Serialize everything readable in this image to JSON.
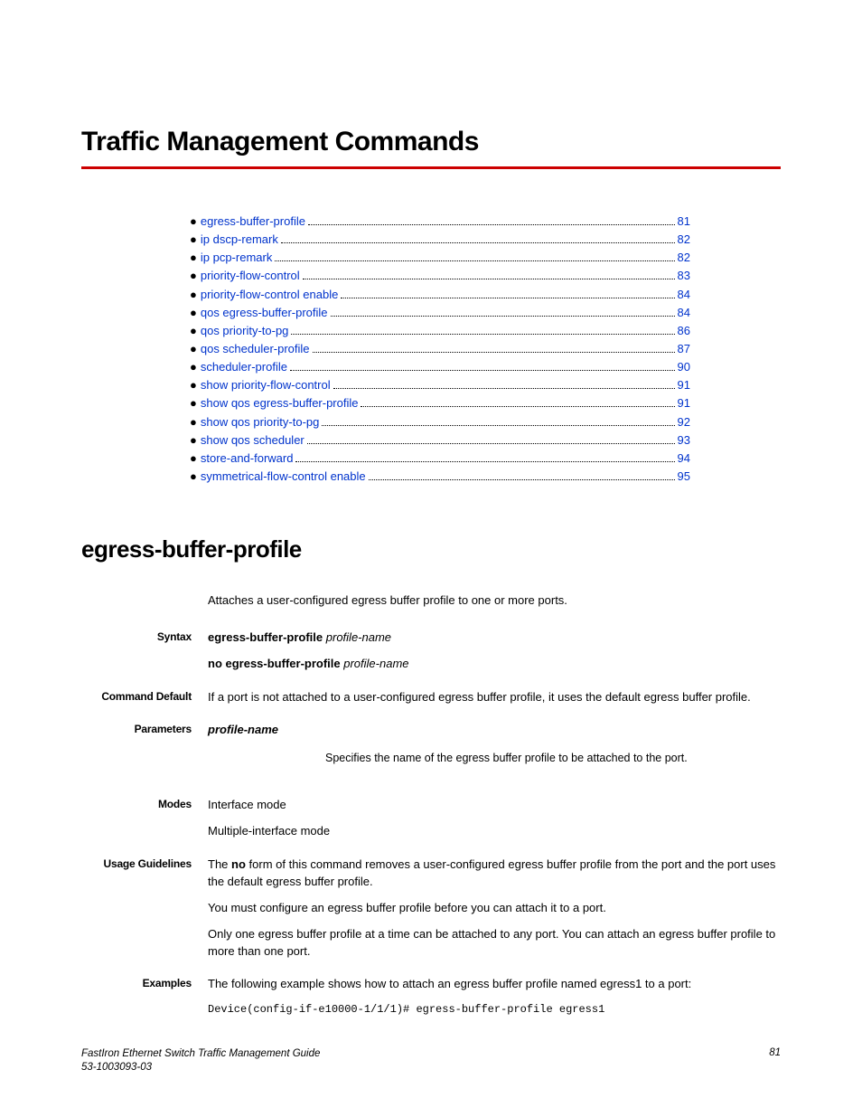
{
  "chapter_title": "Traffic Management Commands",
  "toc": [
    {
      "label": "egress-buffer-profile",
      "page": "81"
    },
    {
      "label": "ip dscp-remark",
      "page": "82"
    },
    {
      "label": "ip pcp-remark",
      "page": "82"
    },
    {
      "label": "priority-flow-control",
      "page": "83"
    },
    {
      "label": "priority-flow-control enable",
      "page": "84"
    },
    {
      "label": "qos egress-buffer-profile",
      "page": "84"
    },
    {
      "label": "qos priority-to-pg",
      "page": "86"
    },
    {
      "label": "qos scheduler-profile",
      "page": "87"
    },
    {
      "label": "scheduler-profile",
      "page": "90"
    },
    {
      "label": "show priority-flow-control",
      "page": "91"
    },
    {
      "label": "show qos egress-buffer-profile",
      "page": "91"
    },
    {
      "label": "show qos priority-to-pg",
      "page": "92"
    },
    {
      "label": "show qos scheduler",
      "page": "93"
    },
    {
      "label": "store-and-forward",
      "page": "94"
    },
    {
      "label": "symmetrical-flow-control enable",
      "page": "95"
    }
  ],
  "section_title": "egress-buffer-profile",
  "intro": "Attaches a user-configured egress buffer profile to one or more ports.",
  "labels": {
    "syntax": "Syntax",
    "command_default": "Command Default",
    "parameters": "Parameters",
    "modes": "Modes",
    "usage_guidelines": "Usage Guidelines",
    "examples": "Examples"
  },
  "syntax": {
    "cmd1_bold": "egress-buffer-profile",
    "cmd1_arg": "profile-name",
    "cmd2_bold": "no egress-buffer-profile",
    "cmd2_arg": "profile-name"
  },
  "command_default": "If a port is not attached to a user-configured egress buffer profile, it uses the default egress buffer profile.",
  "parameters": {
    "name": "profile-name",
    "desc": "Specifies the name of the egress buffer profile to be attached to the port."
  },
  "modes": {
    "line1": "Interface mode",
    "line2": "Multiple-interface mode"
  },
  "usage": {
    "p1_pre": "The ",
    "p1_bold": "no",
    "p1_post": " form of this command removes a user-configured egress buffer profile from the port and the port uses the default egress buffer profile.",
    "p2": "You must configure an egress buffer profile before you can attach it to a port.",
    "p3": "Only one egress buffer profile at a time can be attached to any port. You can attach an egress buffer profile to more than one port."
  },
  "examples": {
    "intro": "The following example shows how to attach an egress buffer profile named egress1 to a port:",
    "code": "Device(config-if-e10000-1/1/1)# egress-buffer-profile egress1"
  },
  "footer": {
    "title": "FastIron Ethernet Switch Traffic Management Guide",
    "docnum": "53-1003093-03",
    "page": "81"
  }
}
